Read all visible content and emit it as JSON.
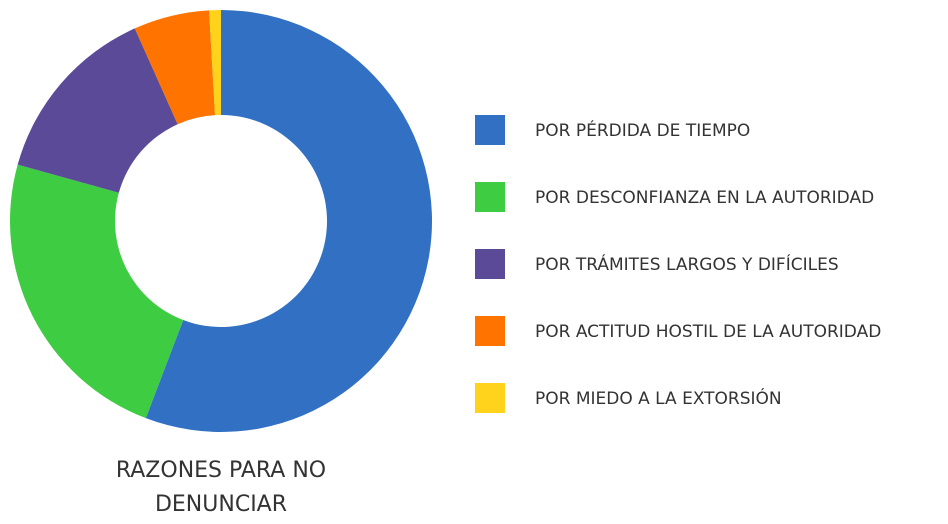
{
  "chart_data": {
    "type": "donut",
    "title": "RAZONES PARA NO DENUNCIAR",
    "categories": [
      "POR PÉRDIDA DE TIEMPO",
      "POR DESCONFIANZA EN LA AUTORIDAD",
      "POR TRÁMITES LARGOS Y DIFÍCILES",
      "POR ACTITUD HOSTIL DE LA AUTORIDAD",
      "POR MIEDO A LA EXTORSIÓN"
    ],
    "values": [
      55.8,
      23.5,
      14.0,
      5.8,
      0.9
    ],
    "colors": [
      "#3170c2",
      "#3dcc42",
      "#5b4a98",
      "#ff7300",
      "#ffd21c"
    ],
    "legend": "right"
  }
}
